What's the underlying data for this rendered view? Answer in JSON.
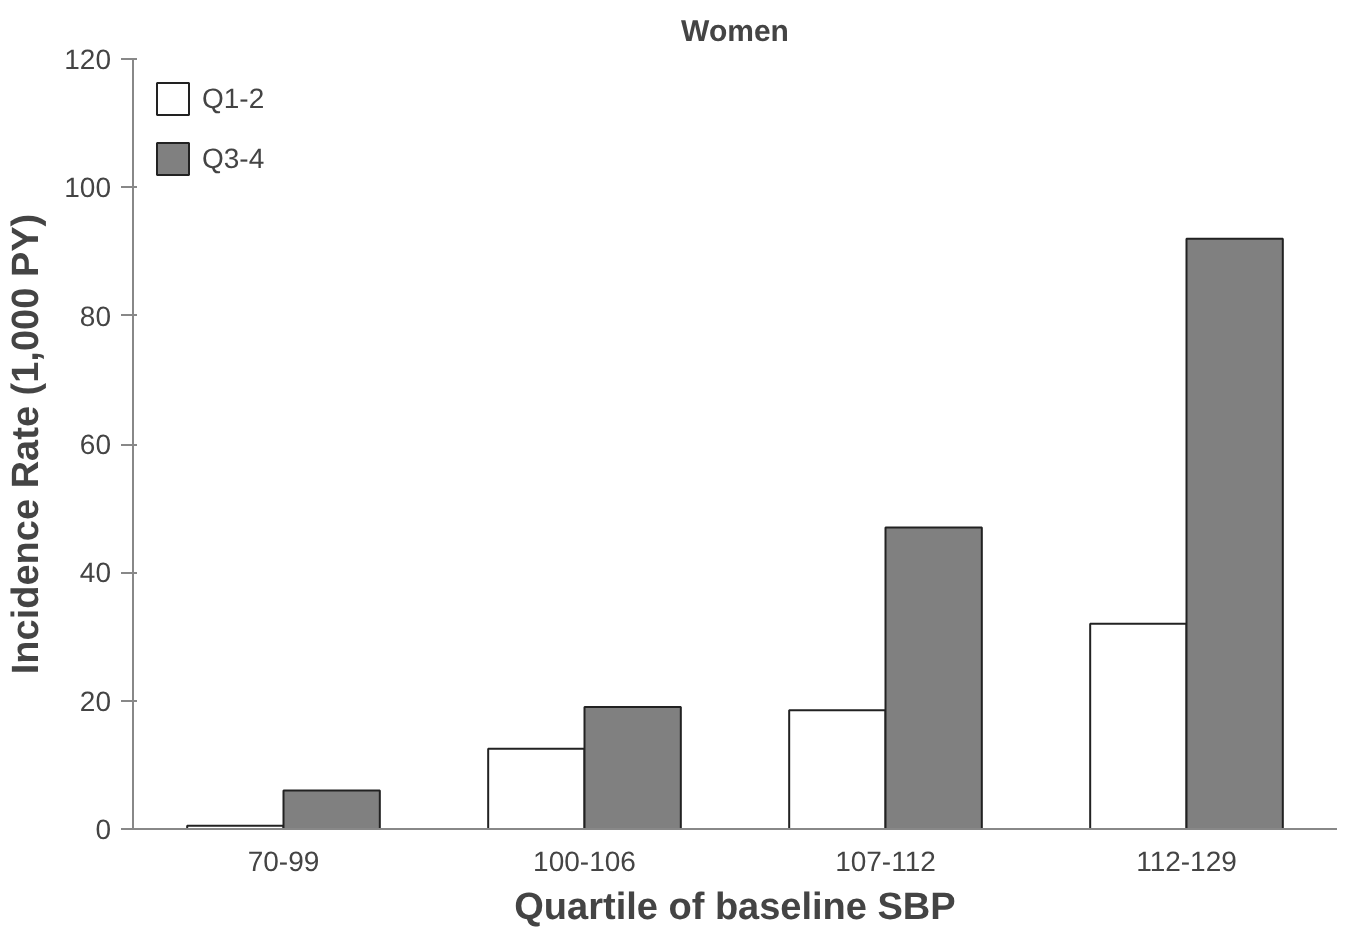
{
  "chart_data": {
    "type": "bar",
    "title": "Women",
    "xlabel": "Quartile of baseline SBP",
    "ylabel": "Incidence Rate (1,000 PY)",
    "categories": [
      "70-99",
      "100-106",
      "107-112",
      "112-129"
    ],
    "series": [
      {
        "name": "Q1-2",
        "color": "#ffffff",
        "values": [
          0.5,
          12.5,
          18.5,
          32
        ]
      },
      {
        "name": "Q3-4",
        "color": "#808080",
        "values": [
          6,
          19,
          47,
          92
        ]
      }
    ],
    "ylim": [
      0,
      120
    ],
    "yticks": [
      0,
      20,
      40,
      60,
      80,
      100,
      120
    ],
    "grid": false,
    "legend": "top left"
  }
}
